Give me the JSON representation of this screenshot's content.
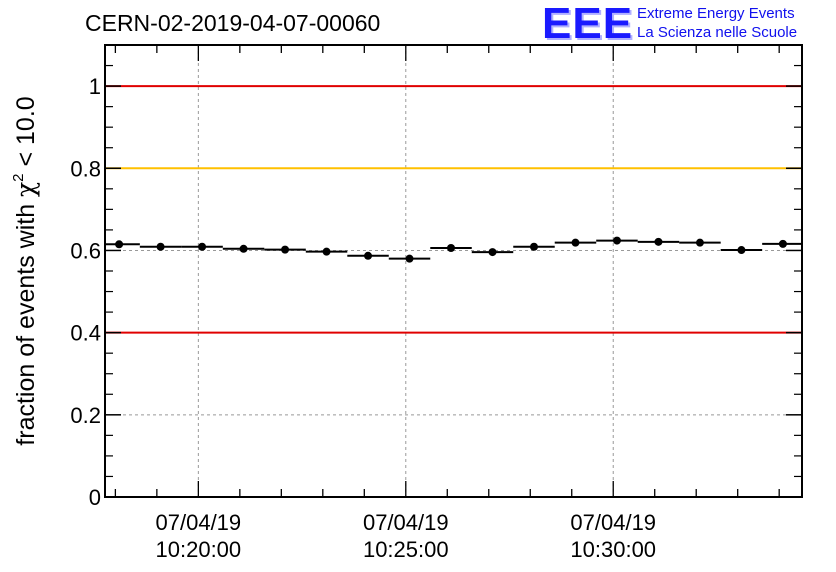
{
  "header": {
    "run_title": "CERN-02-2019-04-07-00060",
    "logo_mark": "EEE",
    "logo_line1": "Extreme Energy Events",
    "logo_line2": "La Scienza nelle Scuole"
  },
  "chart_data": {
    "type": "scatter",
    "ylabel": "fraction of events with χ² < 10.0",
    "ylabel_parts": {
      "pre": "fraction of events with ",
      "chi": "χ",
      "sup": "2",
      "post": " < 10.0"
    },
    "xlabel": "",
    "ylim": [
      0,
      1.1
    ],
    "grid": true,
    "x_ticks": [
      {
        "minutes": 10,
        "date": "07/04/19",
        "time": "10:20:00"
      },
      {
        "minutes": 15,
        "date": "07/04/19",
        "time": "10:25:00"
      },
      {
        "minutes": 20,
        "date": "07/04/19",
        "time": "10:30:00"
      }
    ],
    "y_ticks": [
      "0",
      "0.2",
      "0.4",
      "0.6",
      "0.8",
      "1"
    ],
    "y_tick_values": [
      0,
      0.2,
      0.4,
      0.6,
      0.8,
      1.0
    ],
    "xlim_minutes": [
      7.75,
      24.55
    ],
    "reference_lines": [
      {
        "y": 1.0,
        "color": "#e00000"
      },
      {
        "y": 0.8,
        "color": "#ffc000"
      },
      {
        "y": 0.4,
        "color": "#e00000"
      }
    ],
    "bin_width_minutes": 1.0,
    "series": [
      {
        "marker": "circle",
        "color": "#000000",
        "x_minutes": [
          8.09,
          9.09,
          10.09,
          11.09,
          12.09,
          13.09,
          14.09,
          15.09,
          16.09,
          17.09,
          18.09,
          19.09,
          20.09,
          21.09,
          22.09,
          23.09,
          24.09
        ],
        "y": [
          0.615,
          0.609,
          0.609,
          0.604,
          0.602,
          0.597,
          0.587,
          0.58,
          0.606,
          0.596,
          0.609,
          0.619,
          0.624,
          0.621,
          0.619,
          0.601,
          0.616
        ]
      }
    ]
  }
}
